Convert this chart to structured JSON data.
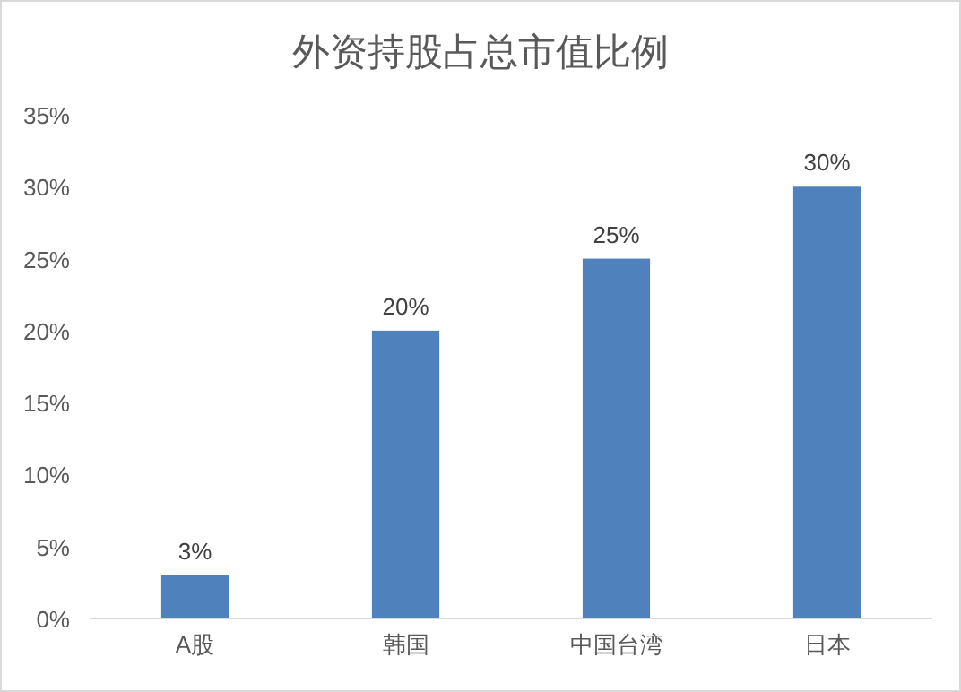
{
  "chart_data": {
    "type": "bar",
    "title": "外资持股占总市值比例",
    "categories": [
      "A股",
      "韩国",
      "中国台湾",
      "日本"
    ],
    "values": [
      3,
      20,
      25,
      30
    ],
    "value_labels": [
      "3%",
      "20%",
      "25%",
      "30%"
    ],
    "color": "#4f81bd",
    "ylim": [
      0,
      35
    ],
    "yticks": [
      {
        "value": 0,
        "label": "0%"
      },
      {
        "value": 5,
        "label": "5%"
      },
      {
        "value": 10,
        "label": "10%"
      },
      {
        "value": 15,
        "label": "15%"
      },
      {
        "value": 20,
        "label": "20%"
      },
      {
        "value": 25,
        "label": "25%"
      },
      {
        "value": 30,
        "label": "30%"
      },
      {
        "value": 35,
        "label": "35%"
      }
    ]
  }
}
